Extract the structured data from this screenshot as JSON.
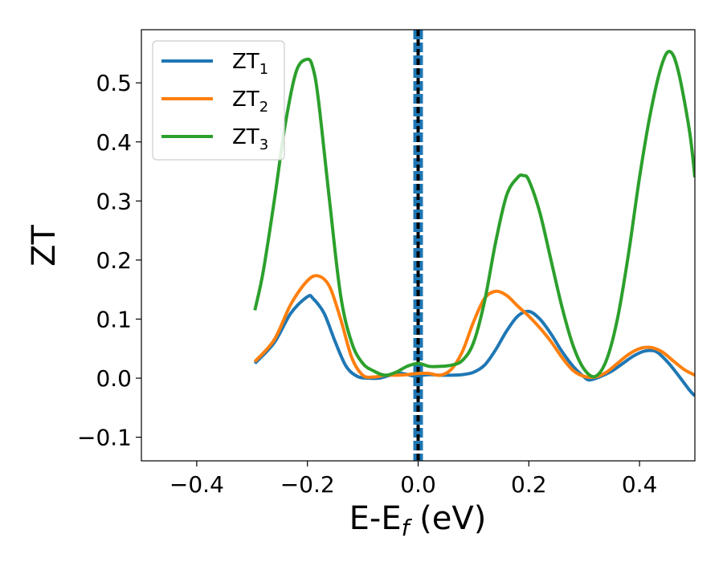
{
  "chart_data": {
    "type": "line",
    "xlabel": "E-E",
    "xlabel_sub": "f",
    "xlabel_unit": " (eV)",
    "ylabel": "ZT",
    "xlim": [
      -0.5,
      0.5
    ],
    "ylim": [
      -0.14,
      0.59
    ],
    "xticks": [
      -0.4,
      -0.2,
      0.0,
      0.2,
      0.4
    ],
    "xtick_labels": [
      "−0.4",
      "−0.2",
      "0.0",
      "0.2",
      "0.4"
    ],
    "yticks": [
      -0.1,
      0.0,
      0.1,
      0.2,
      0.3,
      0.4,
      0.5
    ],
    "ytick_labels": [
      "−0.1",
      "0.0",
      "0.1",
      "0.2",
      "0.3",
      "0.4",
      "0.5"
    ],
    "grid": false,
    "legend": "top-left",
    "fermi_level_line": {
      "x": 0.0,
      "colors": [
        "#1f77b4",
        "#000000"
      ],
      "style": "dashed"
    },
    "series": [
      {
        "name": "ZT",
        "name_sub": "1",
        "color": "#1f77b4",
        "x": [
          -0.295,
          -0.26,
          -0.23,
          -0.2,
          -0.19,
          -0.17,
          -0.15,
          -0.13,
          -0.11,
          -0.09,
          -0.07,
          -0.05,
          -0.03,
          -0.01,
          0.0,
          0.02,
          0.04,
          0.06,
          0.08,
          0.1,
          0.12,
          0.14,
          0.16,
          0.18,
          0.2,
          0.22,
          0.24,
          0.26,
          0.28,
          0.3,
          0.31,
          0.33,
          0.35,
          0.37,
          0.39,
          0.41,
          0.43,
          0.45,
          0.47,
          0.49,
          0.5
        ],
        "values": [
          0.025,
          0.06,
          0.11,
          0.138,
          0.135,
          0.11,
          0.062,
          0.02,
          0.003,
          0.0,
          0.0,
          0.005,
          0.008,
          0.004,
          0.004,
          0.006,
          0.005,
          0.005,
          0.006,
          0.01,
          0.022,
          0.048,
          0.08,
          0.105,
          0.113,
          0.1,
          0.075,
          0.045,
          0.02,
          0.002,
          -0.003,
          0.003,
          0.012,
          0.025,
          0.038,
          0.046,
          0.045,
          0.028,
          0.005,
          -0.02,
          -0.03
        ]
      },
      {
        "name": "ZT",
        "name_sub": "2",
        "color": "#ff7f0e",
        "x": [
          -0.295,
          -0.26,
          -0.23,
          -0.2,
          -0.18,
          -0.16,
          -0.14,
          -0.12,
          -0.1,
          -0.08,
          -0.06,
          -0.04,
          -0.02,
          0.0,
          0.02,
          0.04,
          0.06,
          0.08,
          0.1,
          0.12,
          0.14,
          0.16,
          0.18,
          0.2,
          0.22,
          0.24,
          0.26,
          0.28,
          0.3,
          0.32,
          0.34,
          0.36,
          0.38,
          0.4,
          0.42,
          0.44,
          0.46,
          0.48,
          0.5
        ],
        "values": [
          0.028,
          0.065,
          0.125,
          0.165,
          0.173,
          0.155,
          0.1,
          0.035,
          0.005,
          0.002,
          0.005,
          0.005,
          0.006,
          0.008,
          0.008,
          0.005,
          0.015,
          0.045,
          0.095,
          0.135,
          0.147,
          0.14,
          0.122,
          0.105,
          0.085,
          0.062,
          0.035,
          0.013,
          0.003,
          0.002,
          0.01,
          0.025,
          0.04,
          0.05,
          0.052,
          0.045,
          0.03,
          0.015,
          0.005
        ]
      },
      {
        "name": "ZT",
        "name_sub": "3",
        "color": "#2ca02c",
        "x": [
          -0.295,
          -0.28,
          -0.26,
          -0.24,
          -0.22,
          -0.2,
          -0.19,
          -0.18,
          -0.16,
          -0.14,
          -0.12,
          -0.1,
          -0.08,
          -0.06,
          -0.04,
          -0.02,
          0.0,
          0.02,
          0.04,
          0.06,
          0.08,
          0.1,
          0.12,
          0.14,
          0.16,
          0.18,
          0.19,
          0.2,
          0.22,
          0.24,
          0.26,
          0.28,
          0.3,
          0.32,
          0.34,
          0.36,
          0.38,
          0.4,
          0.42,
          0.44,
          0.455,
          0.47,
          0.49,
          0.5
        ],
        "values": [
          0.115,
          0.18,
          0.3,
          0.43,
          0.52,
          0.54,
          0.525,
          0.47,
          0.3,
          0.14,
          0.06,
          0.025,
          0.012,
          0.005,
          0.01,
          0.02,
          0.025,
          0.02,
          0.02,
          0.022,
          0.03,
          0.06,
          0.13,
          0.23,
          0.31,
          0.34,
          0.343,
          0.335,
          0.28,
          0.2,
          0.12,
          0.055,
          0.015,
          0.003,
          0.03,
          0.1,
          0.21,
          0.34,
          0.45,
          0.53,
          0.553,
          0.52,
          0.42,
          0.34
        ]
      }
    ]
  }
}
